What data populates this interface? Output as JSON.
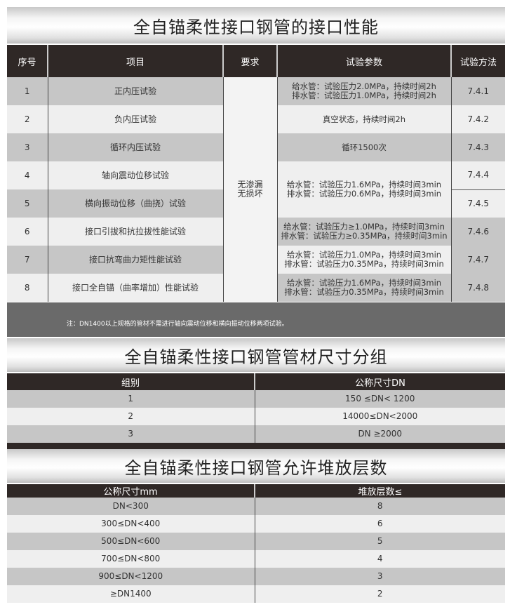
{
  "section1": {
    "title": "全自锚柔性接口钢管的接口性能",
    "headers": [
      "序号",
      "项目",
      "要求",
      "试验参数",
      "试验方法"
    ],
    "requirement": "无渗漏\n无损坏",
    "rows": [
      {
        "no": "1",
        "item": "正内压试验",
        "params": "给水管：试验压力2.0MPa，持续时间2h\n排水管：试验压力1.0MPa，持续时间2h",
        "method": "7.4.1"
      },
      {
        "no": "2",
        "item": "负内压试验",
        "params": "真空状态，持续时间2h",
        "method": "7.4.2"
      },
      {
        "no": "3",
        "item": "循环内压试验",
        "params": "循环1500次",
        "method": "7.4.3"
      },
      {
        "no": "4",
        "item": "轴向震动位移试验",
        "params": "给水管：试验压力1.6MPa，持续时间3min\n排水管：试验压力0.6MPa，持续时间3min",
        "method": "7.4.4"
      },
      {
        "no": "5",
        "item": "横向振动位移（曲挠）试验",
        "method": "7.4.5"
      },
      {
        "no": "6",
        "item": "接口引拔和抗拉拔性能试验",
        "params": "给水管：试验压力≥1.0MPa，持续时间3min\n排水管：试验压力≥0.35MPa，持续时间3min",
        "method": "7.4.6"
      },
      {
        "no": "7",
        "item": "接口抗弯曲力矩性能试验",
        "params": "给水管：试验压力1.0MPa，持续时间3min\n排水管：试验压力0.35MPa，持续时间3min",
        "method": "7.4.7"
      },
      {
        "no": "8",
        "item": "接口全自锚（曲率增加）性能试验",
        "params": "给水管：试验压力1.6MPa，持续时间3min\n排水管：试验压力0.35MPa，持续时间3min",
        "method": "7.4.8"
      }
    ],
    "note": "注：DN1400以上规格的管材不需进行轴向震动位移和横向振动位移两项试验。"
  },
  "section2": {
    "title": "全自锚柔性接口钢管管材尺寸分组",
    "headers": [
      "组别",
      "公称尺寸DN"
    ],
    "rows": [
      [
        "1",
        "150 ≤DN< 1200"
      ],
      [
        "2",
        "14000≤DN<2000"
      ],
      [
        "3",
        "DN ≥2000"
      ]
    ]
  },
  "section3": {
    "title": "全自锚柔性接口钢管允许堆放层数",
    "headers": [
      "公称尺寸mm",
      "堆放层数≤"
    ],
    "rows": [
      [
        "DN<300",
        "8"
      ],
      [
        "300≤DN<400",
        "6"
      ],
      [
        "500≤DN<600",
        "5"
      ],
      [
        "700≤DN<800",
        "4"
      ],
      [
        "900≤DN<1200",
        "3"
      ],
      [
        "≥DN1400",
        "2"
      ]
    ]
  }
}
